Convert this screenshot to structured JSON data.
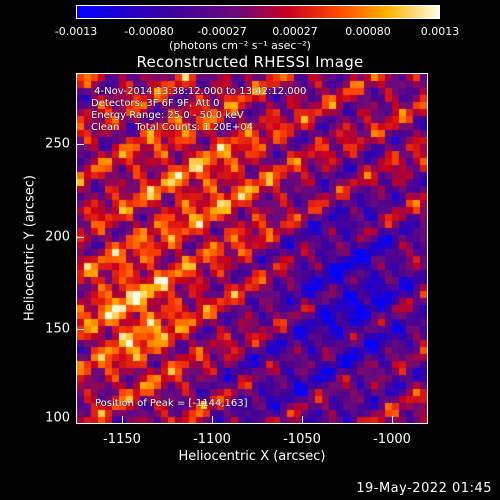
{
  "colorbar": {
    "tick_labels": [
      "-0.0013",
      "-0.00080",
      "-0.00027",
      "0.00027",
      "0.00080",
      "0.0013"
    ],
    "units": "(photons cm⁻² s⁻¹ asec⁻²)"
  },
  "plot": {
    "title": "Reconstructed RHESSI Image",
    "annotations": {
      "time": " 4-Nov-2014 13:38:12.000 to 13:42:12.000",
      "detectors": "Detectors: 3F 6F 9F, Att 0",
      "energy": "Energy Range: 25.0 - 50.0 keV",
      "clean": "Clean     Total Counts: 1.20E+04",
      "peak": "Position of Peak = [-1144,163]"
    },
    "xlabel": "Heliocentric X (arcsec)",
    "ylabel": "Heliocentric Y (arcsec)",
    "xticks": [
      "-1150",
      "-1100",
      "-1050",
      "-1000"
    ],
    "yticks": [
      "250",
      "200",
      "150",
      "100"
    ]
  },
  "footer": {
    "timestamp": "19-May-2022 01:45"
  },
  "chart_data": {
    "type": "heatmap",
    "title": "Reconstructed RHESSI Image",
    "xlabel": "Heliocentric X (arcsec)",
    "ylabel": "Heliocentric Y (arcsec)",
    "xlim": [
      -1170,
      -975
    ],
    "ylim": [
      98,
      290
    ],
    "colorscale_range": [
      -0.0013,
      0.0013
    ],
    "peak": [
      -1144,
      163
    ]
  }
}
